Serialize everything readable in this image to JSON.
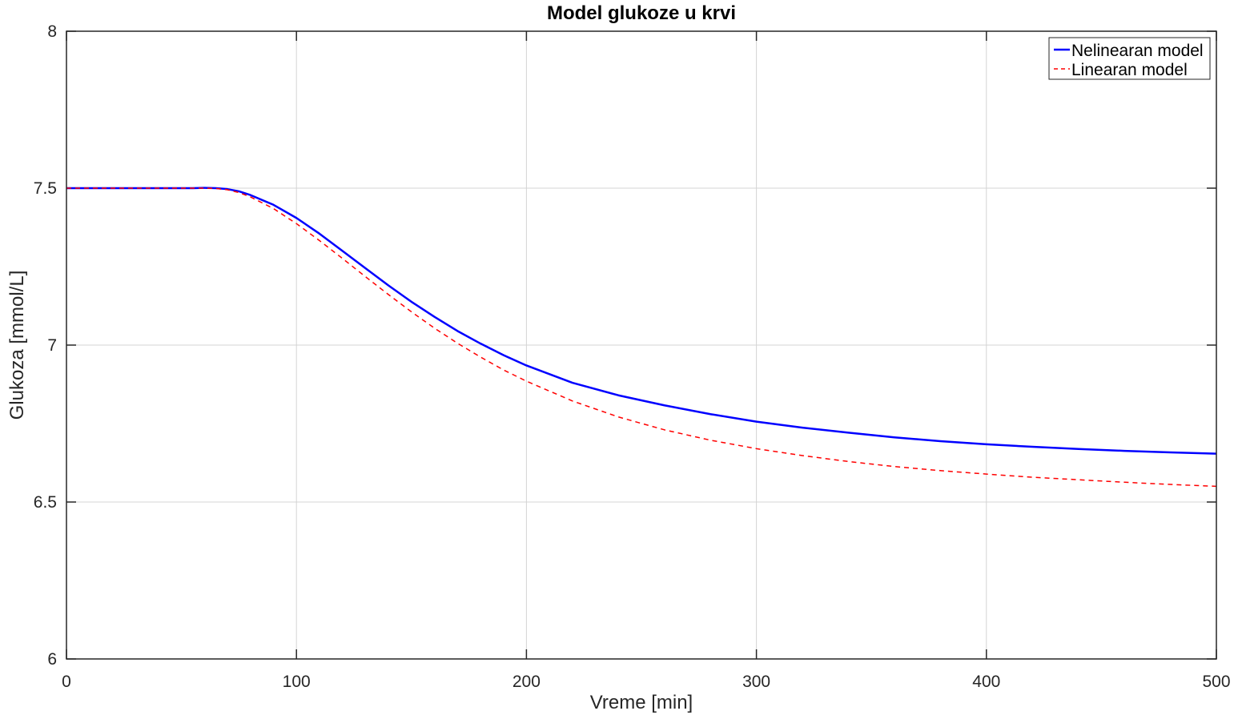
{
  "chart_data": {
    "type": "line",
    "title": "Model glukoze u krvi",
    "xlabel": "Vreme [min]",
    "ylabel": "Glukoza [mmol/L]",
    "xlim": [
      0,
      500
    ],
    "ylim": [
      6,
      8
    ],
    "xticks": [
      0,
      100,
      200,
      300,
      400,
      500
    ],
    "yticks": [
      6,
      6.5,
      7,
      7.5,
      8
    ],
    "xtick_labels": [
      "0",
      "100",
      "200",
      "300",
      "400",
      "500"
    ],
    "ytick_labels": [
      "6",
      "6.5",
      "7",
      "7.5",
      "8"
    ],
    "grid": true,
    "legend_position": "top-right",
    "series": [
      {
        "name": "Nelinearan model",
        "color": "#0000ff",
        "style": "solid",
        "x": [
          0,
          20,
          40,
          55,
          60,
          65,
          70,
          75,
          80,
          90,
          100,
          110,
          120,
          130,
          140,
          150,
          160,
          170,
          180,
          190,
          200,
          220,
          240,
          260,
          280,
          300,
          320,
          340,
          360,
          380,
          400,
          420,
          440,
          460,
          480,
          500
        ],
        "y": [
          7.5,
          7.5,
          7.5,
          7.5,
          7.501,
          7.5,
          7.497,
          7.49,
          7.478,
          7.447,
          7.405,
          7.355,
          7.3,
          7.245,
          7.19,
          7.138,
          7.09,
          7.045,
          7.005,
          6.968,
          6.935,
          6.88,
          6.84,
          6.808,
          6.78,
          6.756,
          6.737,
          6.721,
          6.706,
          6.694,
          6.684,
          6.676,
          6.669,
          6.663,
          6.658,
          6.654
        ]
      },
      {
        "name": "Linearan model",
        "color": "#ff0000",
        "style": "dashed",
        "x": [
          0,
          20,
          40,
          55,
          60,
          65,
          70,
          75,
          80,
          90,
          100,
          110,
          120,
          130,
          140,
          150,
          160,
          170,
          180,
          190,
          200,
          220,
          240,
          260,
          280,
          300,
          320,
          340,
          360,
          380,
          400,
          420,
          440,
          460,
          480,
          500
        ],
        "y": [
          7.5,
          7.5,
          7.5,
          7.5,
          7.5,
          7.499,
          7.495,
          7.486,
          7.472,
          7.435,
          7.387,
          7.333,
          7.276,
          7.218,
          7.161,
          7.106,
          7.054,
          7.006,
          6.962,
          6.921,
          6.885,
          6.822,
          6.771,
          6.73,
          6.697,
          6.67,
          6.648,
          6.629,
          6.613,
          6.6,
          6.589,
          6.579,
          6.571,
          6.563,
          6.556,
          6.55
        ]
      }
    ]
  }
}
